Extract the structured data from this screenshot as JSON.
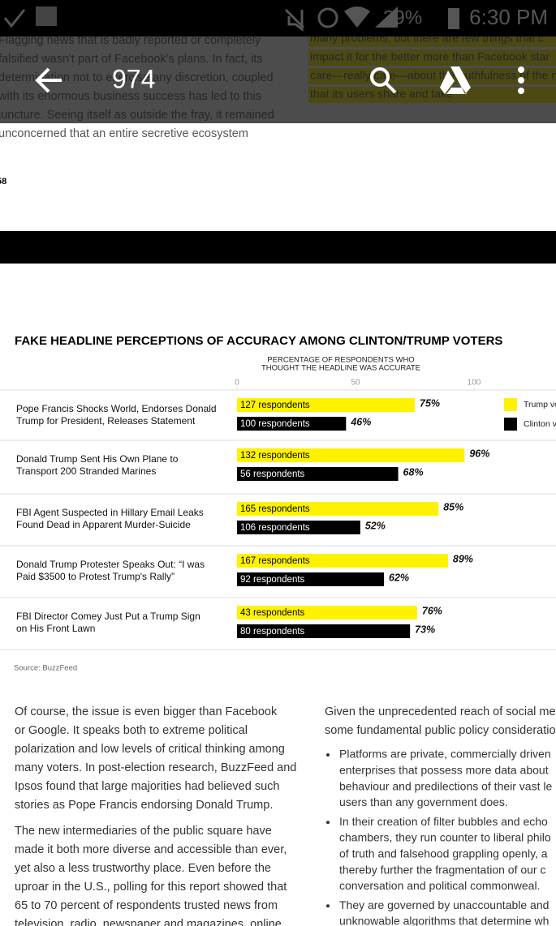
{
  "status_bar": {
    "battery": "29%",
    "time": "6:30 PM"
  },
  "toolbar": {
    "page": "974"
  },
  "background_text": {
    "left_lines": [
      "Flagging news that is badly reported or completely",
      "falsified wasn't part of Facebook's plans. In fact, its",
      "determination not to exercise any discretion, coupled",
      "with its enormous business success has led to this",
      "juncture. Seeing itself as outside the fray, it remained",
      "unconcerned that an entire secretive ecosystem"
    ],
    "right_lines": [
      "many problems, but there are few things that c",
      "impact it for the better more than Facebook star",
      "care—really care—about the truthfulness of the n",
      "that its users share and take"
    ],
    "page_number": "58"
  },
  "chart_data": {
    "type": "bar",
    "orientation": "horizontal",
    "title": "FAKE HEADLINE PERCEPTIONS OF ACCURACY AMONG CLINTON/TRUMP VOTERS",
    "x_label": [
      "PERCENTAGE OF RESPONDENTS WHO",
      "THOUGHT THE HEADLINE WAS ACCURATE"
    ],
    "categories": [
      [
        "Pope Francis Shocks World, Endorses Donald",
        "Trump for President, Releases Statement"
      ],
      [
        "Donald Trump Sent His Own Plane to",
        "Transport 200 Stranded Marines"
      ],
      [
        "FBI Agent Suspected in Hillary Email Leaks",
        "Found Dead in Apparent Murder-Suicide"
      ],
      [
        "Donald Trump Protester Speaks Out: “I was",
        "Paid $3500 to Protest Trump's Rally”"
      ],
      [
        "FBI Director Comey Just Put a Trump Sign",
        "on His Front Lawn"
      ]
    ],
    "series": [
      {
        "name": "Trump vo",
        "color": "#fff200",
        "text_color": "#000000",
        "values": [
          75,
          96,
          85,
          89,
          76
        ],
        "value_labels": [
          "75%",
          "96%",
          "85%",
          "89%",
          "76%"
        ],
        "respondents": [
          "127 respondents",
          "132 respondents",
          "165 respondents",
          "167 respondents",
          "43 respondents"
        ]
      },
      {
        "name": "Clinton v",
        "color": "#000000",
        "text_color": "#ffffff",
        "values": [
          46,
          68,
          52,
          62,
          73
        ],
        "value_labels": [
          "46%",
          "68%",
          "52%",
          "62%",
          "73%"
        ],
        "respondents": [
          "100 respondents",
          "56 respondents",
          "106 respondents",
          "92 respondents",
          "80 respondents"
        ]
      }
    ],
    "xlim": [
      0,
      100
    ],
    "xticks": [
      0,
      50,
      100
    ],
    "source": "Source: BuzzFeed"
  },
  "body": {
    "left_paragraphs": [
      [
        "Of course, the issue is even bigger than Facebook",
        "or Google. It speaks both to extreme political",
        "polarization and low levels of critical thinking among",
        "many voters. In post-election research, BuzzFeed and",
        "Ipsos found that large majorities had believed such",
        "stories as Pope Francis endorsing Donald Trump."
      ],
      [
        "The new intermediaries of the public square have",
        "made it both more diverse and accessible than ever,",
        "yet also a less trustworthy place. Even before the",
        "uproar in the U.S., polling for this report showed that",
        "65 to 70 percent of respondents trusted news from",
        "television, radio, newspaper and magazines, online"
      ]
    ],
    "right_intro": [
      "Given the unprecedented reach of social me",
      "some fundamental public policy consideratio"
    ],
    "right_bullets": [
      [
        "Platforms are private, commercially driven",
        "enterprises that possess more data about",
        "behaviour and predilections of their vast le",
        "users than any government does."
      ],
      [
        "In their creation of filter bubbles and echo",
        "chambers, they run counter to liberal philo",
        "of truth and falsehood grappling openly, a",
        "thereby further the fragmentation of our c",
        "conversation and political commonweal."
      ],
      [
        "They are governed by unaccountable and",
        "unknowable algorithms that determine wh"
      ]
    ]
  }
}
